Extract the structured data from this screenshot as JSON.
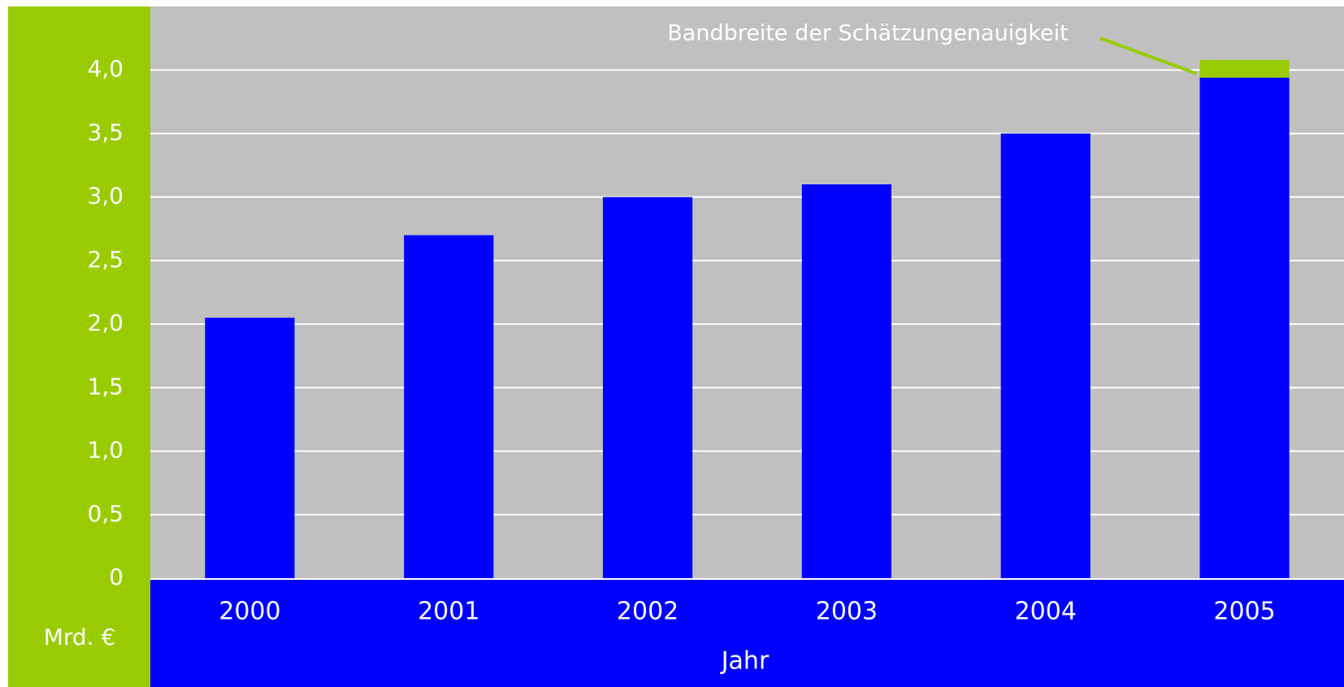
{
  "chart_data": {
    "type": "stacked_bar",
    "annotation": "Bandbreite der Schätzungenauigkeit",
    "y_axis_label": "Mrd. €",
    "x_axis_label": "Jahr",
    "categories": [
      "2000",
      "2001",
      "2002",
      "2003",
      "2004",
      "2005"
    ],
    "series": [
      {
        "color": "#0000ff",
        "values": [
          2.05,
          2.7,
          3.0,
          3.1,
          3.5,
          3.94
        ]
      },
      {
        "color": "#99cc00",
        "values": [
          null,
          null,
          null,
          null,
          null,
          0.14
        ]
      }
    ],
    "ylim": [
      0,
      4.5
    ],
    "yticks": [
      0,
      {
        "value": 0.5,
        "label": "0,5"
      },
      {
        "value": 1,
        "label": "1,0"
      },
      {
        "value": 1.5,
        "label": "1,5"
      },
      {
        "value": 2,
        "label": "2,0"
      },
      {
        "value": 2.5,
        "label": "2,5"
      },
      {
        "value": 3,
        "label": "3,0"
      },
      {
        "value": 3.5,
        "label": "3,5"
      },
      {
        "value": 4,
        "label": "4,0"
      }
    ],
    "grid": true
  }
}
